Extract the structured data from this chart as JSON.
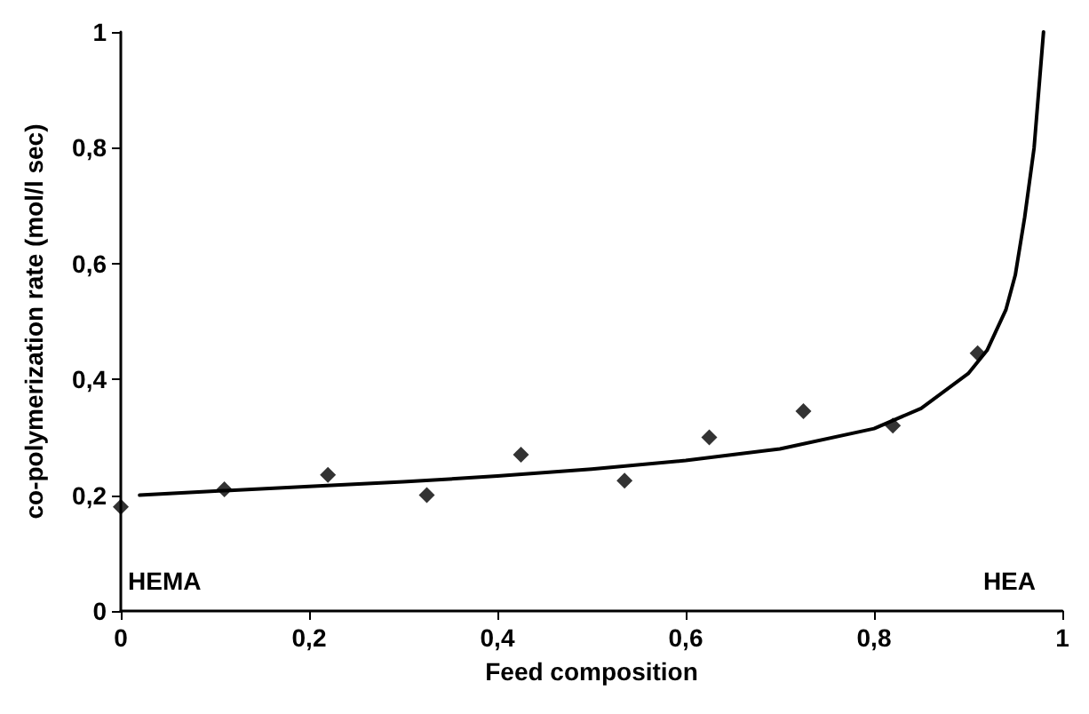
{
  "chart_data": {
    "type": "scatter",
    "xlabel": "Feed composition",
    "ylabel": "co-polymerization rate (mol/l sec)",
    "annotations": [
      "HEMA",
      "HEA"
    ],
    "xlim": [
      0,
      1
    ],
    "ylim": [
      0,
      1
    ],
    "xticks": [
      0,
      {
        "value": 0.2,
        "label": "0,2"
      },
      {
        "value": 0.4,
        "label": "0,4"
      },
      {
        "value": 0.6,
        "label": "0,6"
      },
      {
        "value": 0.8,
        "label": "0,8"
      },
      1
    ],
    "yticks": [
      0,
      {
        "value": 0.2,
        "label": "0,2"
      },
      {
        "value": 0.4,
        "label": "0,4"
      },
      {
        "value": 0.6,
        "label": "0,6"
      },
      {
        "value": 0.8,
        "label": "0,8"
      },
      1
    ],
    "grid": false,
    "marker": "diamond",
    "series": [
      {
        "color": "#000000",
        "x": [
          0,
          0.11,
          0.22,
          0.325,
          0.425,
          0.535,
          0.625,
          0.725,
          0.82,
          0.91
        ],
        "values": [
          0.18,
          0.21,
          0.235,
          0.2,
          0.27,
          0.225,
          0.3,
          0.345,
          0.32,
          0.445
        ]
      },
      {
        "type": "line",
        "color": "#000000",
        "line_style": "solid",
        "marker": "none",
        "x": [
          0.02,
          0.1,
          0.2,
          0.3,
          0.4,
          0.5,
          0.6,
          0.7,
          0.8,
          0.85,
          0.9,
          0.92,
          0.94,
          0.95,
          0.96,
          0.97,
          0.98
        ],
        "values": [
          0.2,
          0.207,
          0.215,
          0.223,
          0.233,
          0.245,
          0.26,
          0.28,
          0.315,
          0.35,
          0.41,
          0.45,
          0.52,
          0.58,
          0.68,
          0.8,
          1
        ]
      }
    ]
  }
}
